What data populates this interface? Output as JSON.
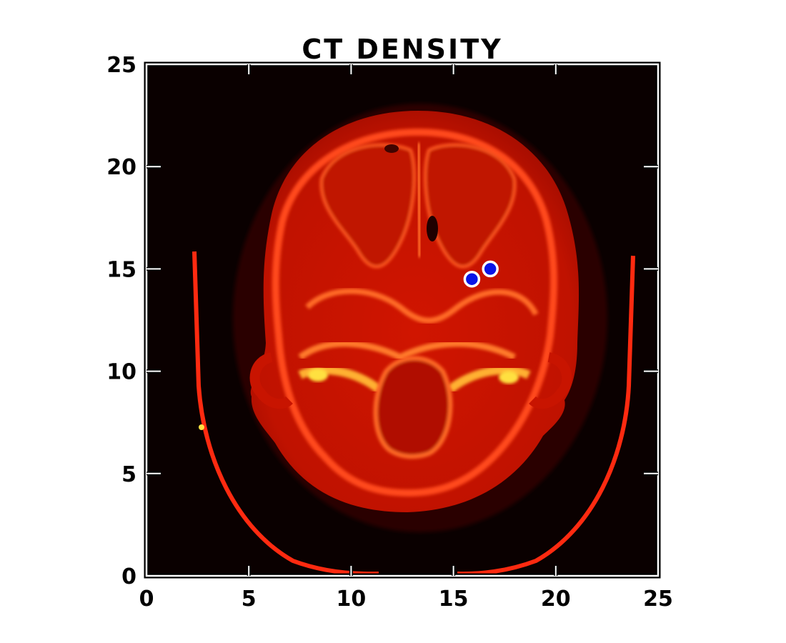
{
  "chart_data": {
    "type": "heatmap",
    "title": "CT DENSITY",
    "xlabel": "",
    "ylabel": "",
    "xlim": [
      0,
      25
    ],
    "ylim": [
      0,
      25
    ],
    "x_ticks": [
      0,
      5,
      10,
      15,
      20,
      25
    ],
    "y_ticks": [
      0,
      5,
      10,
      15,
      20,
      25
    ],
    "x_tick_labels": [
      "0",
      "5",
      "10",
      "15",
      "20",
      "25"
    ],
    "y_tick_labels": [
      "0",
      "5",
      "10",
      "15",
      "20",
      "25"
    ],
    "grid": false,
    "colormap": "hot",
    "image": "axial CT slice of a human skull",
    "scatter_points": [
      {
        "x": 15.9,
        "y": 14.5
      },
      {
        "x": 16.8,
        "y": 15.0
      }
    ],
    "colors": {
      "background": "#0a0000",
      "tissue": "#c81400",
      "bone": "#ff5a1e",
      "dense_bone": "#ffe040",
      "marker_fill": "#0a14e6",
      "marker_edge": "#ffffff"
    }
  }
}
